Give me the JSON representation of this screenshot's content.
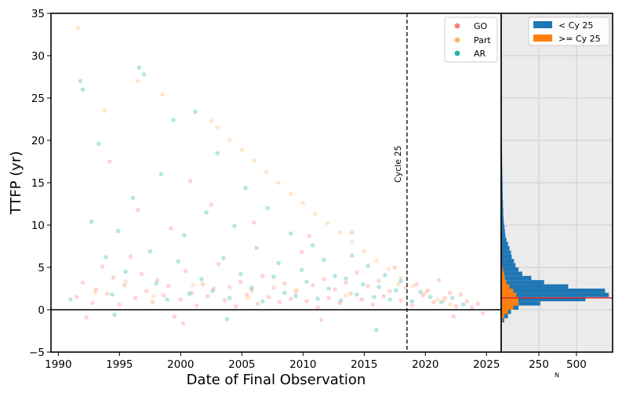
{
  "chart_data": [
    {
      "type": "scatter",
      "xlabel": "Date of Final Observation",
      "ylabel": "TTFP (yr)",
      "xlim": [
        1989.4,
        2026.2
      ],
      "ylim": [
        -5,
        35
      ],
      "xticks": [
        "1990",
        "1995",
        "2000",
        "2005",
        "2010",
        "2015",
        "2020",
        "2025"
      ],
      "yticks": [
        "−5",
        "0",
        "5",
        "10",
        "15",
        "20",
        "25",
        "30",
        "35"
      ],
      "grid": false,
      "legend_position": "top-right",
      "reference_lines": [
        {
          "orientation": "vertical",
          "x": 2018.5,
          "style": "dashed",
          "label": "Cycle 25"
        },
        {
          "orientation": "horizontal",
          "y": 0,
          "style": "solid"
        }
      ],
      "series": [
        {
          "name": "GO",
          "color": "#fa8072",
          "points": [
            [
              1991.5,
              1.5
            ],
            [
              1992.0,
              3.2
            ],
            [
              1992.8,
              0.8
            ],
            [
              1993.1,
              2.4
            ],
            [
              1993.6,
              5.1
            ],
            [
              1994.0,
              1.9
            ],
            [
              1994.5,
              3.8
            ],
            [
              1995.0,
              0.6
            ],
            [
              1995.4,
              2.9
            ],
            [
              1995.9,
              6.3
            ],
            [
              1996.3,
              1.4
            ],
            [
              1996.8,
              4.2
            ],
            [
              1997.2,
              2.2
            ],
            [
              1997.7,
              0.9
            ],
            [
              1998.1,
              3.5
            ],
            [
              1998.6,
              1.7
            ],
            [
              1999.0,
              2.8
            ],
            [
              1999.5,
              -0.8
            ],
            [
              2000.0,
              1.2
            ],
            [
              2000.4,
              4.6
            ],
            [
              2000.9,
              2.0
            ],
            [
              2001.3,
              0.5
            ],
            [
              2001.8,
              3.0
            ],
            [
              2002.2,
              1.6
            ],
            [
              2002.7,
              2.5
            ],
            [
              2003.1,
              5.4
            ],
            [
              2003.6,
              1.1
            ],
            [
              2004.0,
              2.7
            ],
            [
              2004.5,
              0.4
            ],
            [
              2004.9,
              3.3
            ],
            [
              2005.4,
              1.8
            ],
            [
              2005.8,
              2.3
            ],
            [
              2006.3,
              0.7
            ],
            [
              2006.7,
              4.0
            ],
            [
              2007.2,
              1.5
            ],
            [
              2007.6,
              2.6
            ],
            [
              2008.1,
              0.9
            ],
            [
              2008.5,
              3.1
            ],
            [
              2009.0,
              1.3
            ],
            [
              2009.4,
              2.1
            ],
            [
              2009.9,
              6.8
            ],
            [
              2010.3,
              1.0
            ],
            [
              2010.8,
              2.9
            ],
            [
              2011.2,
              0.3
            ],
            [
              2011.7,
              3.6
            ],
            [
              2012.1,
              1.4
            ],
            [
              2012.6,
              2.4
            ],
            [
              2013.0,
              0.8
            ],
            [
              2013.5,
              3.2
            ],
            [
              2013.9,
              1.9
            ],
            [
              2014.4,
              4.4
            ],
            [
              2014.8,
              1.2
            ],
            [
              2015.3,
              2.8
            ],
            [
              2015.7,
              0.6
            ],
            [
              2016.2,
              3.4
            ],
            [
              2016.6,
              1.6
            ],
            [
              2017.1,
              2.2
            ],
            [
              2017.5,
              5.0
            ],
            [
              2018.0,
              1.1
            ],
            [
              2018.4,
              2.6
            ],
            [
              2018.9,
              0.5
            ],
            [
              2019.3,
              3.0
            ],
            [
              2019.8,
              1.7
            ],
            [
              2020.2,
              2.3
            ],
            [
              2020.7,
              0.9
            ],
            [
              2021.1,
              3.5
            ],
            [
              2021.6,
              1.4
            ],
            [
              2022.0,
              2.0
            ],
            [
              2022.5,
              0.4
            ],
            [
              2022.9,
              1.8
            ],
            [
              2023.4,
              1.0
            ],
            [
              2023.8,
              0.3
            ],
            [
              2024.3,
              0.7
            ],
            [
              2024.7,
              -0.4
            ],
            [
              1996.5,
              11.8
            ],
            [
              1999.2,
              9.6
            ],
            [
              2002.5,
              12.4
            ],
            [
              2006.0,
              10.3
            ],
            [
              2010.5,
              8.7
            ],
            [
              2014.0,
              9.1
            ],
            [
              1994.2,
              17.5
            ],
            [
              2000.8,
              15.2
            ],
            [
              1992.3,
              -0.9
            ],
            [
              2000.2,
              -1.6
            ],
            [
              2011.5,
              -1.2
            ],
            [
              2022.3,
              -0.8
            ]
          ]
        },
        {
          "name": "Part",
          "color": "#ffb366",
          "points": [
            [
              1991.6,
              33.3
            ],
            [
              1993.8,
              23.5
            ],
            [
              1996.5,
              27.0
            ],
            [
              1998.5,
              25.4
            ],
            [
              2002.5,
              22.3
            ],
            [
              2003.0,
              21.5
            ],
            [
              2004.0,
              20.0
            ],
            [
              2005.0,
              18.9
            ],
            [
              2006.0,
              17.6
            ],
            [
              2007.0,
              16.3
            ],
            [
              2008.0,
              15.0
            ],
            [
              2009.0,
              13.7
            ],
            [
              2010.0,
              12.6
            ],
            [
              2011.0,
              11.3
            ],
            [
              2012.0,
              10.2
            ],
            [
              2013.0,
              9.1
            ],
            [
              2014.0,
              8.0
            ],
            [
              2015.0,
              6.9
            ],
            [
              2016.0,
              5.8
            ],
            [
              2017.0,
              4.8
            ],
            [
              2018.0,
              3.8
            ],
            [
              2019.0,
              2.8
            ],
            [
              2020.0,
              2.0
            ],
            [
              2021.0,
              1.2
            ],
            [
              2022.0,
              0.6
            ],
            [
              1993.0,
              2.1
            ],
            [
              1995.5,
              3.3
            ],
            [
              1997.8,
              1.6
            ],
            [
              2001.0,
              2.9
            ],
            [
              2005.5,
              1.4
            ],
            [
              2009.5,
              2.4
            ],
            [
              2013.5,
              1.7
            ],
            [
              2017.8,
              3.0
            ],
            [
              2021.5,
              1.1
            ]
          ]
        },
        {
          "name": "AR",
          "color": "#20b2aa",
          "points": [
            [
              1991.0,
              1.2
            ],
            [
              1991.8,
              27.0
            ],
            [
              1992.0,
              26.0
            ],
            [
              1992.7,
              10.4
            ],
            [
              1993.3,
              19.6
            ],
            [
              1993.9,
              6.2
            ],
            [
              1994.4,
              1.8
            ],
            [
              1994.9,
              9.3
            ],
            [
              1995.5,
              4.5
            ],
            [
              1996.1,
              13.2
            ],
            [
              1996.6,
              28.6
            ],
            [
              1997.0,
              27.8
            ],
            [
              1997.5,
              6.9
            ],
            [
              1998.0,
              3.1
            ],
            [
              1998.4,
              16.0
            ],
            [
              1998.9,
              1.2
            ],
            [
              1999.4,
              22.4
            ],
            [
              1999.8,
              5.7
            ],
            [
              2000.3,
              8.8
            ],
            [
              2000.7,
              1.9
            ],
            [
              2001.2,
              23.4
            ],
            [
              2001.7,
              3.6
            ],
            [
              2002.1,
              11.5
            ],
            [
              2002.6,
              2.2
            ],
            [
              2003.0,
              18.5
            ],
            [
              2003.5,
              6.1
            ],
            [
              2004.0,
              1.4
            ],
            [
              2004.4,
              9.9
            ],
            [
              2004.9,
              4.2
            ],
            [
              2005.3,
              14.4
            ],
            [
              2005.8,
              2.6
            ],
            [
              2006.2,
              7.3
            ],
            [
              2006.7,
              1.0
            ],
            [
              2007.1,
              12.0
            ],
            [
              2007.6,
              3.9
            ],
            [
              2008.0,
              5.5
            ],
            [
              2008.5,
              2.0
            ],
            [
              2009.0,
              9.0
            ],
            [
              2009.4,
              1.6
            ],
            [
              2009.9,
              4.7
            ],
            [
              2010.3,
              3.3
            ],
            [
              2010.8,
              7.6
            ],
            [
              2011.2,
              1.3
            ],
            [
              2011.7,
              5.9
            ],
            [
              2012.1,
              2.5
            ],
            [
              2012.6,
              4.0
            ],
            [
              2013.1,
              1.1
            ],
            [
              2013.5,
              3.7
            ],
            [
              2014.0,
              6.4
            ],
            [
              2014.4,
              1.8
            ],
            [
              2014.9,
              3.0
            ],
            [
              2015.3,
              5.2
            ],
            [
              2015.8,
              1.5
            ],
            [
              2016.2,
              2.7
            ],
            [
              2016.7,
              4.1
            ],
            [
              2017.1,
              1.2
            ],
            [
              2017.6,
              2.3
            ],
            [
              2018.0,
              3.4
            ],
            [
              2018.9,
              1.0
            ],
            [
              2019.6,
              2.1
            ],
            [
              2020.4,
              1.5
            ],
            [
              2021.3,
              0.9
            ],
            [
              2022.2,
              1.4
            ],
            [
              2023.1,
              0.6
            ],
            [
              1994.6,
              -0.6
            ],
            [
              2003.8,
              -1.1
            ],
            [
              2016.0,
              -2.4
            ]
          ]
        }
      ]
    },
    {
      "type": "bar",
      "orientation": "horizontal",
      "stacked": "overlay",
      "xlabel": "N",
      "xticks": [
        "250",
        "500"
      ],
      "xlim": [
        0,
        740
      ],
      "ylim": [
        -5,
        35
      ],
      "grid": true,
      "background": "#ebebeb",
      "legend_position": "top",
      "bin_edges": [
        -1.5,
        -1.0,
        -0.5,
        0.0,
        0.5,
        1.0,
        1.5,
        2.0,
        2.5,
        3.0,
        3.5,
        4.0,
        4.5,
        5.0,
        5.5,
        6.0,
        6.5,
        7.0,
        7.5,
        8.0,
        8.5,
        9.0,
        9.5,
        10.0,
        10.5,
        11.0,
        12.0,
        13.0,
        14.0,
        15.0,
        16.0,
        17.0,
        18.0,
        19.0,
        20.0
      ],
      "median_line": {
        "y": 1.4,
        "color": "#d62728"
      },
      "series": [
        {
          "name": "< Cy 25",
          "color": "#1f77b4",
          "values": [
            20,
            45,
            65,
            115,
            260,
            560,
            715,
            690,
            445,
            285,
            200,
            140,
            115,
            95,
            85,
            70,
            65,
            55,
            45,
            35,
            28,
            25,
            22,
            18,
            16,
            14,
            12,
            10,
            9,
            8,
            7,
            6,
            5,
            4
          ]
        },
        {
          "name": ">= Cy 25",
          "color": "#ff7f0e",
          "values": [
            8,
            20,
            45,
            80,
            115,
            115,
            100,
            80,
            55,
            35,
            25,
            18,
            12,
            6,
            3,
            2,
            1,
            1,
            0,
            0,
            0,
            0,
            0,
            0,
            0,
            0,
            0,
            0,
            0,
            0,
            0,
            0,
            0,
            0
          ]
        }
      ]
    }
  ]
}
